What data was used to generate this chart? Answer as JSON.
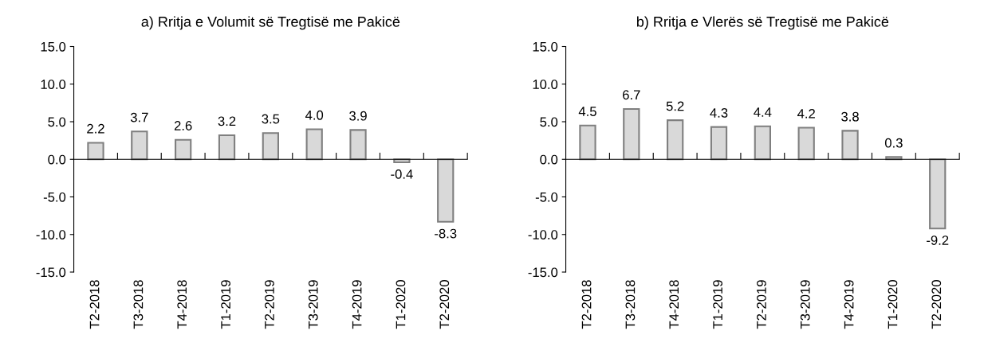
{
  "chart_data": [
    {
      "type": "bar",
      "title": "a) Rritja e Volumit së Tregtisë me Pakicë",
      "categories": [
        "T2-2018",
        "T3-2018",
        "T4-2018",
        "T1-2019",
        "T2-2019",
        "T3-2019",
        "T4-2019",
        "T1-2020",
        "T2-2020"
      ],
      "values": [
        2.2,
        3.7,
        2.6,
        3.2,
        3.5,
        4.0,
        3.9,
        -0.4,
        -8.3
      ],
      "value_labels": [
        "2.2",
        "3.7",
        "2.6",
        "3.2",
        "3.5",
        "4.0",
        "3.9",
        "-0.4",
        "-8.3"
      ],
      "color": "#d9d9d9",
      "ylim": [
        -15,
        15
      ],
      "yticks": [
        {
          "value": -15,
          "label": "-15.0"
        },
        {
          "value": -10,
          "label": "-10.0"
        },
        {
          "value": -5,
          "label": "-5.0"
        },
        {
          "value": 0,
          "label": "0.0"
        },
        {
          "value": 5,
          "label": "5.0"
        },
        {
          "value": 10,
          "label": "10.0"
        },
        {
          "value": 15,
          "label": "15.0"
        }
      ]
    },
    {
      "type": "bar",
      "title": "b) Rritja e Vlerës së Tregtisë me Pakicë",
      "categories": [
        "T2-2018",
        "T3-2018",
        "T4-2018",
        "T1-2019",
        "T2-2019",
        "T3-2019",
        "T4-2019",
        "T1-2020",
        "T2-2020"
      ],
      "values": [
        4.5,
        6.7,
        5.2,
        4.3,
        4.4,
        4.2,
        3.8,
        0.3,
        -9.2
      ],
      "value_labels": [
        "4.5",
        "6.7",
        "5.2",
        "4.3",
        "4.4",
        "4.2",
        "3.8",
        "0.3",
        "-9.2"
      ],
      "color": "#d9d9d9",
      "ylim": [
        -15,
        15
      ],
      "yticks": [
        {
          "value": -15,
          "label": "-15.0"
        },
        {
          "value": -10,
          "label": "-10.0"
        },
        {
          "value": -5,
          "label": "-5.0"
        },
        {
          "value": 0,
          "label": "0.0"
        },
        {
          "value": 5,
          "label": "5.0"
        },
        {
          "value": 10,
          "label": "10.0"
        },
        {
          "value": 15,
          "label": "15.0"
        }
      ]
    }
  ]
}
